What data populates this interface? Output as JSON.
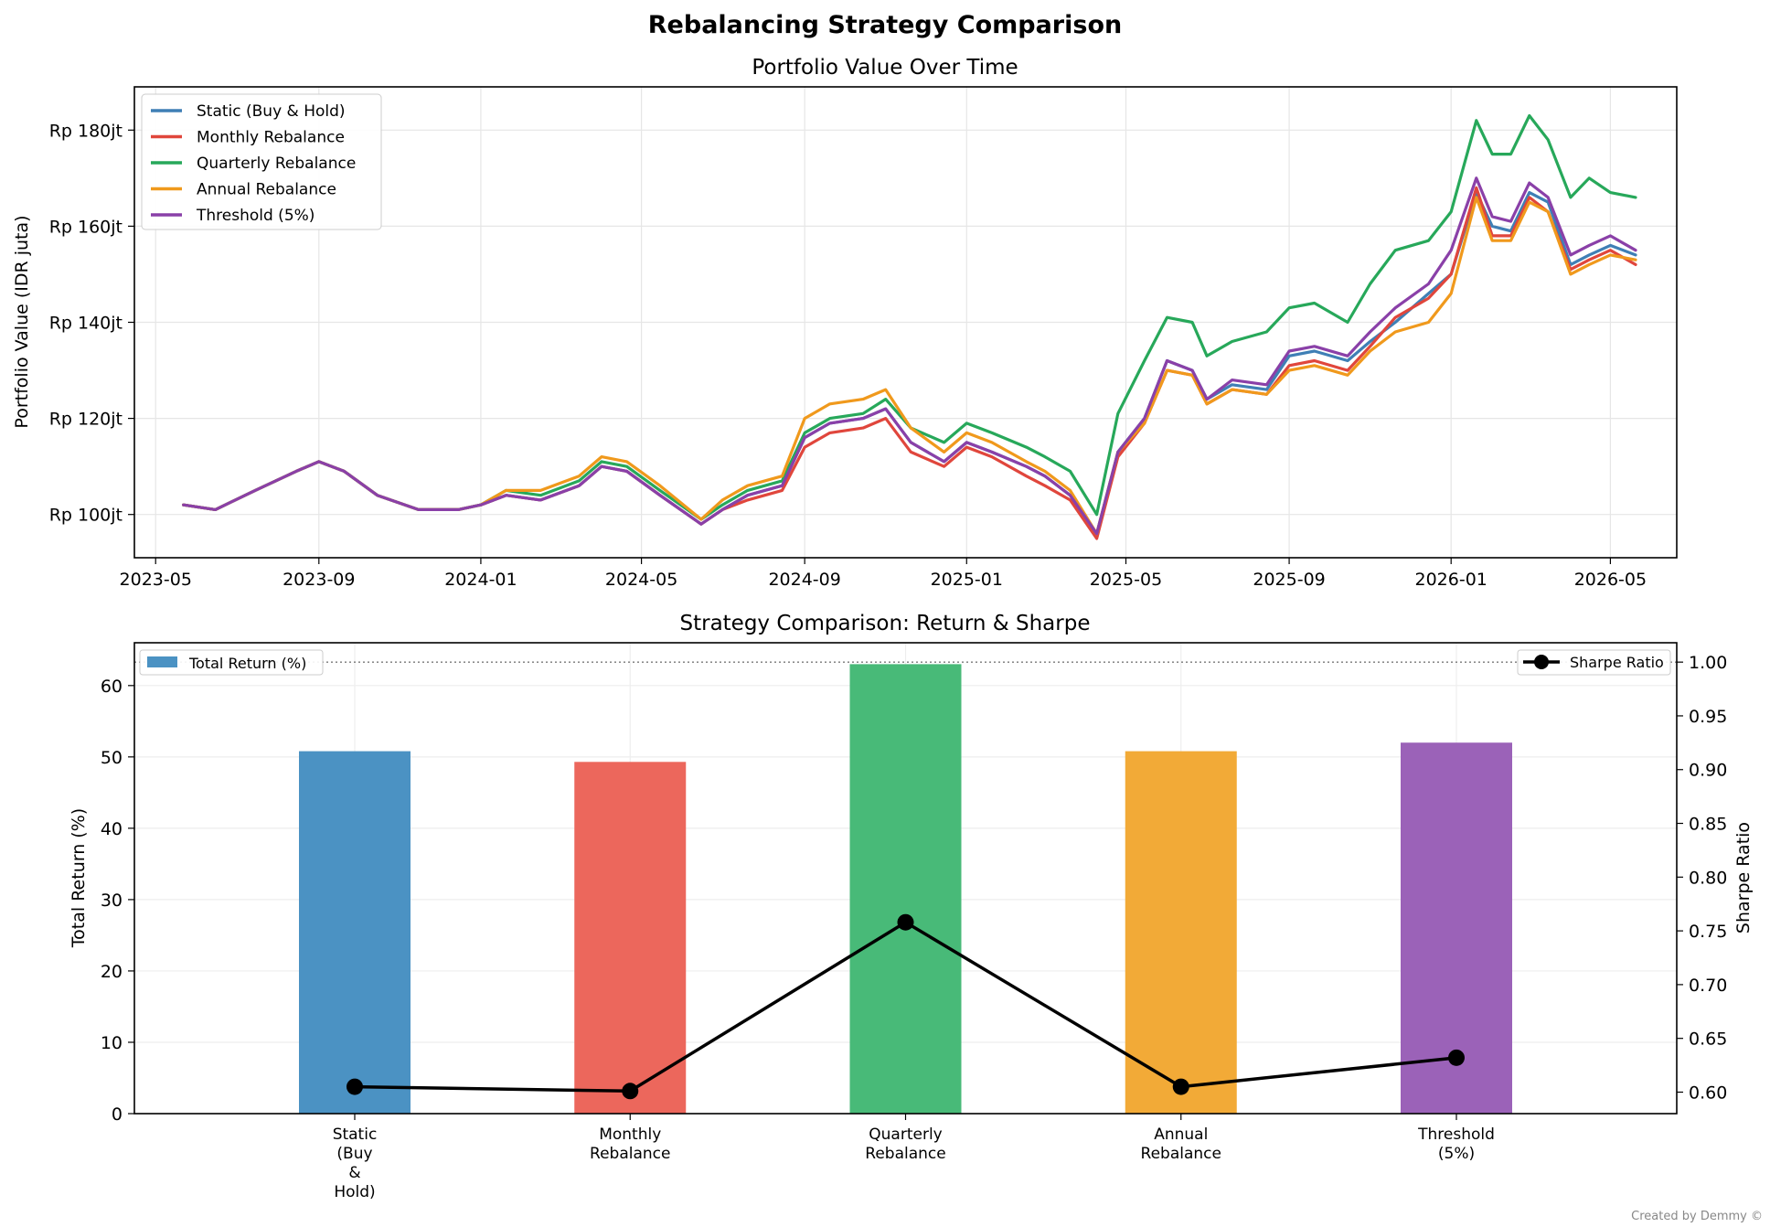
{
  "figure": {
    "suptitle": "Rebalancing Strategy Comparison",
    "credit": "Created by Demmy ©"
  },
  "chart_data": [
    {
      "type": "line",
      "title": "Portfolio Value Over Time",
      "xlabel": "",
      "ylabel": "Portfolio Value (IDR juta)",
      "x_ticks": [
        "2023-05",
        "2023-09",
        "2024-01",
        "2024-05",
        "2024-09",
        "2025-01",
        "2025-05",
        "2025-09",
        "2026-01",
        "2026-05"
      ],
      "y_ticks": [
        "Rp 100jt",
        "Rp 120jt",
        "Rp 140jt",
        "Rp 160jt",
        "Rp 180jt"
      ],
      "y_tick_values": [
        100,
        120,
        140,
        160,
        180
      ],
      "ylim": [
        91,
        189
      ],
      "xlim": [
        "2023-04-15",
        "2026-06-20"
      ],
      "grid": true,
      "legend": "upper left",
      "x_dates": [
        "2023-05-22",
        "2023-06-15",
        "2023-07-15",
        "2023-08-15",
        "2023-09-01",
        "2023-09-20",
        "2023-10-15",
        "2023-11-15",
        "2023-12-15",
        "2024-01-01",
        "2024-01-20",
        "2024-02-15",
        "2024-03-15",
        "2024-04-01",
        "2024-04-20",
        "2024-05-15",
        "2024-06-15",
        "2024-07-01",
        "2024-07-20",
        "2024-08-15",
        "2024-09-01",
        "2024-09-20",
        "2024-10-15",
        "2024-11-01",
        "2024-11-20",
        "2024-12-15",
        "2025-01-01",
        "2025-01-20",
        "2025-02-15",
        "2025-03-01",
        "2025-03-20",
        "2025-04-09",
        "2025-04-25",
        "2025-05-15",
        "2025-06-01",
        "2025-06-20",
        "2025-07-01",
        "2025-07-20",
        "2025-08-15",
        "2025-09-01",
        "2025-09-20",
        "2025-10-15",
        "2025-11-01",
        "2025-11-20",
        "2025-12-15",
        "2026-01-01",
        "2026-01-20",
        "2026-02-01",
        "2026-02-15",
        "2026-03-01",
        "2026-03-15",
        "2026-04-01",
        "2026-04-15",
        "2026-05-01",
        "2026-05-20"
      ],
      "series": [
        {
          "name": "Static (Buy & Hold)",
          "color": "#3f7fb5",
          "values": [
            102,
            101,
            105,
            109,
            111,
            109,
            104,
            101,
            101,
            102,
            104,
            103,
            106,
            110,
            109,
            104,
            98,
            101,
            104,
            106,
            116,
            119,
            120,
            122,
            115,
            111,
            115,
            113,
            110,
            108,
            104,
            96,
            113,
            120,
            132,
            130,
            124,
            127,
            126,
            133,
            134,
            132,
            136,
            140,
            146,
            150,
            167,
            160,
            159,
            167,
            165,
            152,
            154,
            156,
            154
          ]
        },
        {
          "name": "Monthly Rebalance",
          "color": "#e0463c",
          "values": [
            102,
            101,
            105,
            109,
            111,
            109,
            104,
            101,
            101,
            102,
            104,
            103,
            106,
            110,
            109,
            104,
            98,
            101,
            103,
            105,
            114,
            117,
            118,
            120,
            113,
            110,
            114,
            112,
            108,
            106,
            103,
            95,
            112,
            119,
            130,
            129,
            123,
            126,
            125,
            131,
            132,
            130,
            135,
            141,
            145,
            150,
            168,
            158,
            158,
            166,
            163,
            151,
            153,
            155,
            152
          ]
        },
        {
          "name": "Quarterly Rebalance",
          "color": "#27a85a",
          "values": [
            102,
            101,
            105,
            109,
            111,
            109,
            104,
            101,
            101,
            102,
            105,
            104,
            107,
            111,
            110,
            105,
            99,
            102,
            105,
            107,
            117,
            120,
            121,
            124,
            118,
            115,
            119,
            117,
            114,
            112,
            109,
            100,
            121,
            132,
            141,
            140,
            133,
            136,
            138,
            143,
            144,
            140,
            148,
            155,
            157,
            163,
            182,
            175,
            175,
            183,
            178,
            166,
            170,
            167,
            166
          ]
        },
        {
          "name": "Annual Rebalance",
          "color": "#f0991c",
          "values": [
            102,
            101,
            105,
            109,
            111,
            109,
            104,
            101,
            101,
            102,
            105,
            105,
            108,
            112,
            111,
            106,
            99,
            103,
            106,
            108,
            120,
            123,
            124,
            126,
            118,
            113,
            117,
            115,
            111,
            109,
            105,
            96,
            113,
            119,
            130,
            129,
            123,
            126,
            125,
            130,
            131,
            129,
            134,
            138,
            140,
            146,
            166,
            157,
            157,
            165,
            163,
            150,
            152,
            154,
            153
          ]
        },
        {
          "name": "Threshold (5%)",
          "color": "#8a40a8",
          "values": [
            102,
            101,
            105,
            109,
            111,
            109,
            104,
            101,
            101,
            102,
            104,
            103,
            106,
            110,
            109,
            104,
            98,
            101,
            104,
            106,
            116,
            119,
            120,
            122,
            115,
            111,
            115,
            113,
            110,
            108,
            104,
            96,
            113,
            120,
            132,
            130,
            124,
            128,
            127,
            134,
            135,
            133,
            138,
            143,
            148,
            155,
            170,
            162,
            161,
            169,
            166,
            154,
            156,
            158,
            155
          ]
        }
      ]
    },
    {
      "type": "bar",
      "title": "Strategy Comparison: Return & Sharpe",
      "xlabel": "",
      "ylabel": "Total Return (%)",
      "ylabel_right": "Sharpe Ratio",
      "categories": [
        "Static\n(Buy\n&\nHold)",
        "Monthly\nRebalance",
        "Quarterly\nRebalance",
        "Annual\nRebalance",
        "Threshold\n(5%)"
      ],
      "colors": [
        "#4b92c3",
        "#ec675c",
        "#48ba78",
        "#f2aa37",
        "#9b62b8"
      ],
      "ylim": [
        0,
        66
      ],
      "y_ticks": [
        "0",
        "10",
        "20",
        "30",
        "40",
        "50",
        "60"
      ],
      "ylim_right": [
        0.58,
        1.018
      ],
      "y_ticks_right": [
        "0.60",
        "0.65",
        "0.70",
        "0.75",
        "0.80",
        "0.85",
        "0.90",
        "0.95",
        "1.00"
      ],
      "grid": true,
      "reference_line": 1.0,
      "series": [
        {
          "name": "Total Return (%)",
          "axis": "left",
          "values": [
            50.8,
            49.3,
            63.0,
            50.8,
            52.0
          ]
        },
        {
          "name": "Sharpe Ratio",
          "axis": "right",
          "values": [
            0.605,
            0.601,
            0.758,
            0.605,
            0.632
          ]
        }
      ],
      "legend_left": "upper left",
      "legend_right": "upper right"
    }
  ]
}
